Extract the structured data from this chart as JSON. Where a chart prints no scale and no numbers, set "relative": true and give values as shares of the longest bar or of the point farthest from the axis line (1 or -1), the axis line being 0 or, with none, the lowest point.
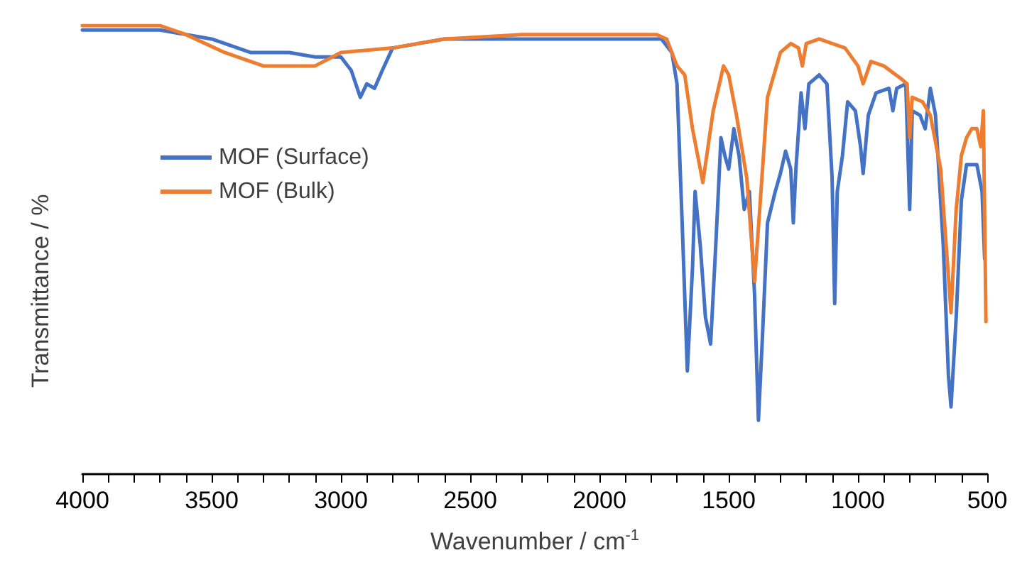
{
  "chart_data": {
    "type": "line",
    "xlabel": "Wavenumber / cm$^{-1}$",
    "ylabel": "Transmittance / %",
    "relative": true,
    "xlim": [
      4000,
      500
    ],
    "xticks": [
      4000,
      {
        "value": 3900,
        "label": null
      },
      {
        "value": 3800,
        "label": null
      },
      {
        "value": 3700,
        "label": null
      },
      {
        "value": 3600,
        "label": null
      },
      3500,
      {
        "value": 3400,
        "label": null
      },
      {
        "value": 3300,
        "label": null
      },
      {
        "value": 3200,
        "label": null
      },
      {
        "value": 3100,
        "label": null
      },
      3000,
      {
        "value": 2900,
        "label": null
      },
      {
        "value": 2800,
        "label": null
      },
      {
        "value": 2700,
        "label": null
      },
      {
        "value": 2600,
        "label": null
      },
      2500,
      {
        "value": 2400,
        "label": null
      },
      {
        "value": 2300,
        "label": null
      },
      {
        "value": 2200,
        "label": null
      },
      {
        "value": 2100,
        "label": null
      },
      2000,
      {
        "value": 1900,
        "label": null
      },
      {
        "value": 1800,
        "label": null
      },
      {
        "value": 1700,
        "label": null
      },
      {
        "value": 1600,
        "label": null
      },
      1500,
      {
        "value": 1400,
        "label": null
      },
      {
        "value": 1300,
        "label": null
      },
      {
        "value": 1200,
        "label": null
      },
      {
        "value": 1100,
        "label": null
      },
      1000,
      {
        "value": 900,
        "label": null
      },
      {
        "value": 800,
        "label": null
      },
      {
        "value": 700,
        "label": null
      },
      {
        "value": 600,
        "label": null
      },
      500
    ],
    "legend": "left",
    "grid": false,
    "marker": "none",
    "line_style": "solid",
    "series": [
      {
        "name": "MOF (Surface)",
        "color": "#4472c4",
        "x": [
          4000,
          3700,
          3500,
          3350,
          3300,
          3200,
          3100,
          3000,
          2960,
          2925,
          2900,
          2870,
          2840,
          2800,
          2600,
          2200,
          1800,
          1760,
          1720,
          1700,
          1680,
          1660,
          1640,
          1630,
          1610,
          1590,
          1570,
          1550,
          1530,
          1515,
          1500,
          1480,
          1460,
          1440,
          1420,
          1400,
          1385,
          1370,
          1350,
          1320,
          1300,
          1280,
          1260,
          1250,
          1240,
          1220,
          1205,
          1190,
          1150,
          1120,
          1100,
          1090,
          1080,
          1060,
          1040,
          1010,
          990,
          980,
          960,
          930,
          880,
          865,
          850,
          815,
          800,
          790,
          760,
          740,
          720,
          700,
          670,
          650,
          640,
          620,
          600,
          580,
          540,
          520,
          510
        ],
        "values": [
          0.99,
          0.99,
          0.97,
          0.94,
          0.94,
          0.94,
          0.93,
          0.93,
          0.9,
          0.84,
          0.87,
          0.86,
          0.9,
          0.95,
          0.97,
          0.97,
          0.97,
          0.97,
          0.94,
          0.87,
          0.56,
          0.23,
          0.46,
          0.63,
          0.51,
          0.35,
          0.29,
          0.51,
          0.75,
          0.71,
          0.68,
          0.77,
          0.71,
          0.59,
          0.63,
          0.4,
          0.12,
          0.3,
          0.56,
          0.63,
          0.67,
          0.72,
          0.68,
          0.56,
          0.68,
          0.85,
          0.77,
          0.87,
          0.89,
          0.87,
          0.66,
          0.38,
          0.63,
          0.71,
          0.83,
          0.81,
          0.73,
          0.67,
          0.8,
          0.85,
          0.86,
          0.81,
          0.86,
          0.87,
          0.59,
          0.81,
          0.8,
          0.77,
          0.86,
          0.8,
          0.51,
          0.22,
          0.15,
          0.35,
          0.61,
          0.69,
          0.69,
          0.63,
          0.48
        ]
      },
      {
        "name": "MOF (Bulk)",
        "color": "#ed7d31",
        "x": [
          4000,
          3700,
          3600,
          3450,
          3300,
          3200,
          3100,
          3000,
          2800,
          2600,
          2300,
          2000,
          1780,
          1740,
          1700,
          1670,
          1640,
          1600,
          1560,
          1520,
          1500,
          1470,
          1430,
          1400,
          1380,
          1350,
          1300,
          1260,
          1230,
          1215,
          1200,
          1150,
          1050,
          1000,
          980,
          950,
          900,
          830,
          810,
          800,
          790,
          750,
          720,
          680,
          650,
          640,
          620,
          600,
          580,
          560,
          540,
          525,
          515,
          505
        ],
        "values": [
          1,
          1,
          0.98,
          0.94,
          0.91,
          0.91,
          0.91,
          0.94,
          0.95,
          0.97,
          0.98,
          0.98,
          0.98,
          0.97,
          0.91,
          0.89,
          0.77,
          0.65,
          0.81,
          0.91,
          0.89,
          0.8,
          0.66,
          0.43,
          0.59,
          0.84,
          0.94,
          0.96,
          0.95,
          0.91,
          0.96,
          0.97,
          0.95,
          0.91,
          0.87,
          0.92,
          0.91,
          0.88,
          0.87,
          0.75,
          0.84,
          0.83,
          0.8,
          0.68,
          0.44,
          0.36,
          0.59,
          0.71,
          0.75,
          0.77,
          0.77,
          0.73,
          0.81,
          0.34
        ]
      }
    ]
  }
}
